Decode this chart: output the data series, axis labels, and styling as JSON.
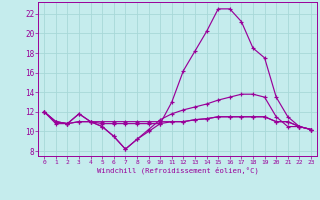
{
  "xlabel": "Windchill (Refroidissement éolien,°C)",
  "ylabel": "",
  "xlim": [
    -0.5,
    23.5
  ],
  "ylim": [
    7.5,
    23.2
  ],
  "xticks": [
    0,
    1,
    2,
    3,
    4,
    5,
    6,
    7,
    8,
    9,
    10,
    11,
    12,
    13,
    14,
    15,
    16,
    17,
    18,
    19,
    20,
    21,
    22,
    23
  ],
  "yticks": [
    8,
    10,
    12,
    14,
    16,
    18,
    20,
    22
  ],
  "background_color": "#c5eced",
  "grid_color": "#a8d8d8",
  "line_color": "#990099",
  "series": [
    [
      12.0,
      11.0,
      10.8,
      11.8,
      11.0,
      10.5,
      9.5,
      8.2,
      9.2,
      10.2,
      11.2,
      11.8,
      12.2,
      12.5,
      12.8,
      13.2,
      13.5,
      13.8,
      13.8,
      13.5,
      11.5,
      10.5,
      10.5,
      10.2
    ],
    [
      12.0,
      11.0,
      10.8,
      11.0,
      11.0,
      11.0,
      11.0,
      11.0,
      11.0,
      11.0,
      11.0,
      11.0,
      11.0,
      11.2,
      11.3,
      11.5,
      11.5,
      11.5,
      11.5,
      11.5,
      11.0,
      11.0,
      10.5,
      10.2
    ],
    [
      12.0,
      11.0,
      10.8,
      11.0,
      11.0,
      10.8,
      10.8,
      10.8,
      10.8,
      10.8,
      10.8,
      11.0,
      11.0,
      11.2,
      11.3,
      11.5,
      11.5,
      11.5,
      11.5,
      11.5,
      11.0,
      11.0,
      10.5,
      10.2
    ],
    [
      12.0,
      10.8,
      10.8,
      11.8,
      11.0,
      10.5,
      9.5,
      8.2,
      9.2,
      10.0,
      10.8,
      13.0,
      16.2,
      18.2,
      20.2,
      22.5,
      22.5,
      21.2,
      18.5,
      17.5,
      13.5,
      11.5,
      10.5,
      10.2
    ]
  ]
}
